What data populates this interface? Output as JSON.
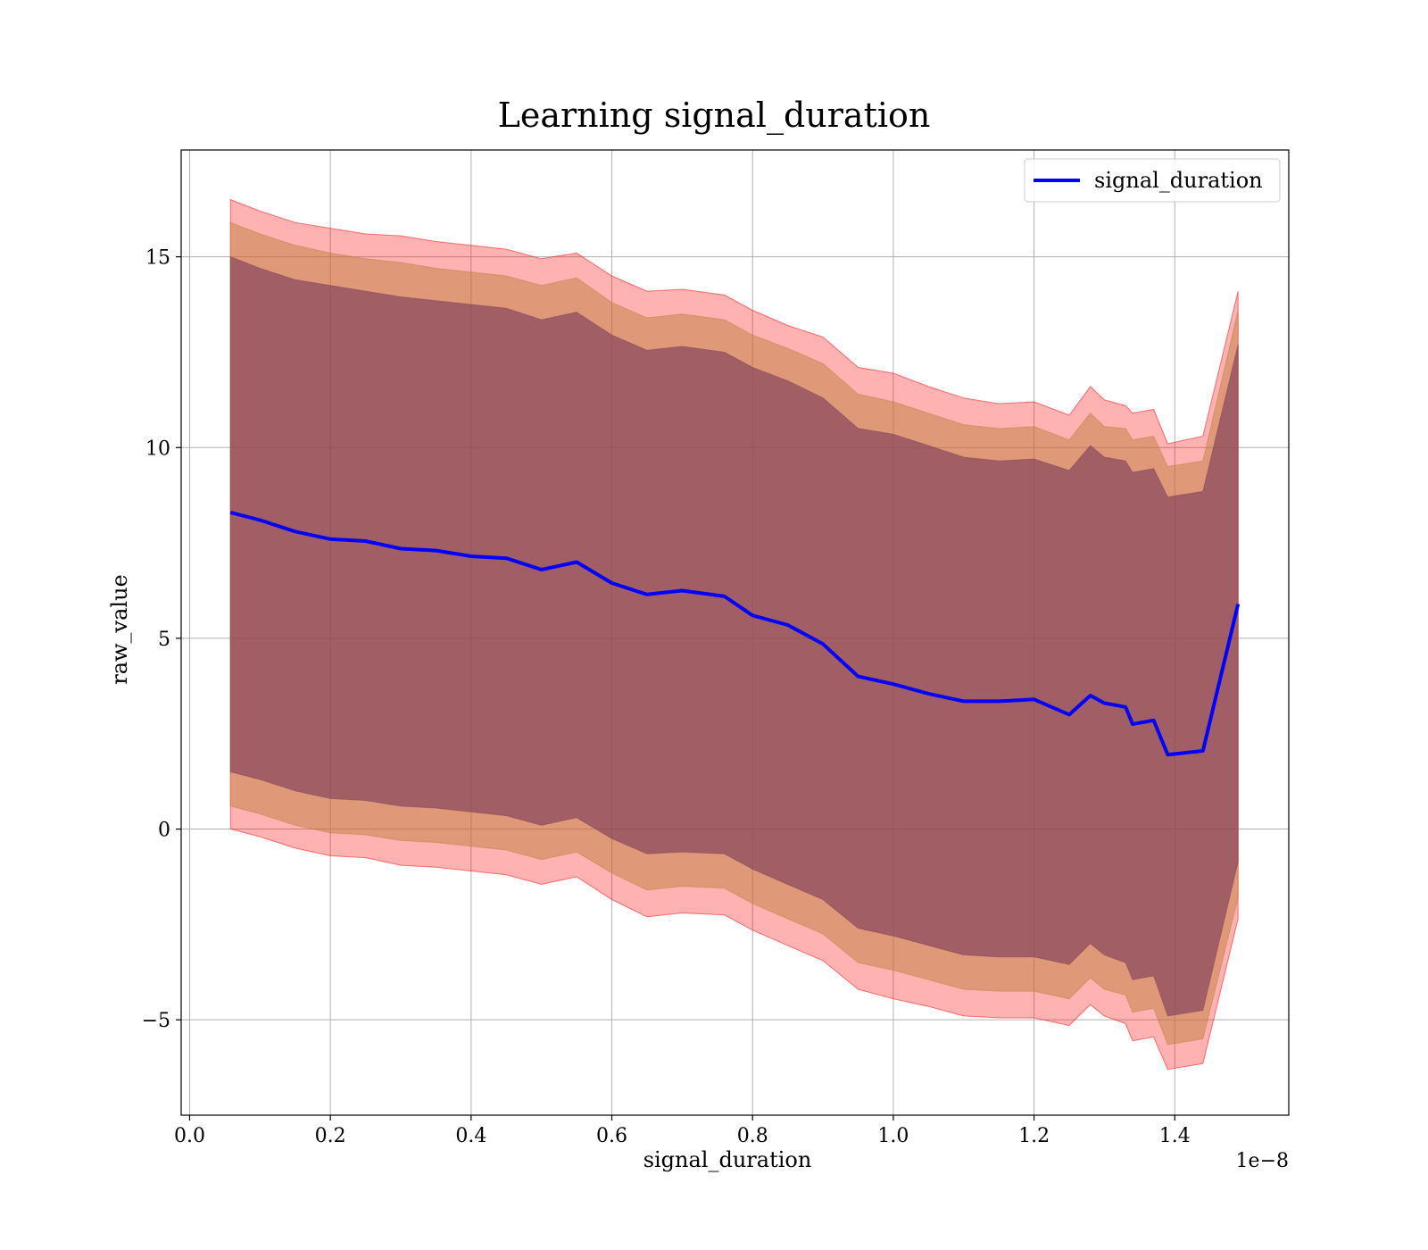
{
  "chart_data": {
    "type": "line",
    "title": "Learning signal_duration",
    "xlabel": "signal_duration",
    "ylabel": "raw_value",
    "x_offset_label": "1e−8",
    "xlim": [
      -0.012,
      1.562
    ],
    "ylim": [
      -7.5,
      17.8
    ],
    "x_ticks": [
      0.0,
      0.2,
      0.4,
      0.6,
      0.8,
      1.0,
      1.2,
      1.4
    ],
    "x_tick_labels": [
      "0.0",
      "0.2",
      "0.4",
      "0.6",
      "0.8",
      "1.0",
      "1.2",
      "1.4"
    ],
    "y_ticks": [
      -5,
      0,
      5,
      10,
      15
    ],
    "y_tick_labels": [
      "−5",
      "0",
      "5",
      "10",
      "15"
    ],
    "grid": true,
    "legend": {
      "position": "upper-right",
      "entries": [
        "signal_duration"
      ]
    },
    "colors": {
      "line": "#0000ff",
      "band_outer": "#ff0000",
      "band_middle": "#bf8040",
      "band_inner": "#80405a",
      "grid": "#b0b0b0"
    },
    "series": [
      {
        "name": "signal_duration",
        "x": [
          0.058,
          0.1,
          0.15,
          0.2,
          0.25,
          0.3,
          0.35,
          0.4,
          0.45,
          0.5,
          0.55,
          0.6,
          0.65,
          0.7,
          0.76,
          0.8,
          0.85,
          0.9,
          0.95,
          1.0,
          1.05,
          1.1,
          1.15,
          1.2,
          1.25,
          1.28,
          1.3,
          1.33,
          1.34,
          1.37,
          1.39,
          1.44,
          1.49
        ],
        "y": [
          8.3,
          8.1,
          7.8,
          7.6,
          7.55,
          7.35,
          7.3,
          7.15,
          7.1,
          6.8,
          7.0,
          6.45,
          6.15,
          6.25,
          6.1,
          5.6,
          5.35,
          4.85,
          4.0,
          3.8,
          3.55,
          3.35,
          3.35,
          3.4,
          3.0,
          3.5,
          3.3,
          3.2,
          2.75,
          2.85,
          1.95,
          2.05,
          5.9
        ]
      }
    ],
    "bands": [
      {
        "level": "outer",
        "upper": [
          16.5,
          16.2,
          15.9,
          15.75,
          15.6,
          15.55,
          15.4,
          15.3,
          15.2,
          14.95,
          15.1,
          14.5,
          14.1,
          14.15,
          14.0,
          13.6,
          13.2,
          12.9,
          12.1,
          11.95,
          11.6,
          11.3,
          11.15,
          11.2,
          10.85,
          11.6,
          11.25,
          11.1,
          10.9,
          11.0,
          10.1,
          10.3,
          14.1
        ],
        "lower": [
          0.0,
          -0.2,
          -0.5,
          -0.7,
          -0.75,
          -0.95,
          -1.0,
          -1.1,
          -1.2,
          -1.45,
          -1.25,
          -1.85,
          -2.3,
          -2.2,
          -2.25,
          -2.65,
          -3.05,
          -3.45,
          -4.2,
          -4.45,
          -4.65,
          -4.9,
          -4.95,
          -4.95,
          -5.15,
          -4.6,
          -4.9,
          -5.1,
          -5.55,
          -5.45,
          -6.3,
          -6.15,
          -2.35
        ]
      },
      {
        "level": "middle",
        "upper": [
          15.9,
          15.6,
          15.3,
          15.1,
          14.95,
          14.85,
          14.7,
          14.6,
          14.5,
          14.25,
          14.45,
          13.8,
          13.4,
          13.5,
          13.35,
          12.95,
          12.6,
          12.2,
          11.4,
          11.2,
          10.9,
          10.6,
          10.5,
          10.55,
          10.2,
          10.9,
          10.55,
          10.5,
          10.2,
          10.3,
          9.5,
          9.65,
          13.6
        ],
        "lower": [
          0.6,
          0.4,
          0.1,
          -0.1,
          -0.15,
          -0.3,
          -0.35,
          -0.45,
          -0.55,
          -0.8,
          -0.6,
          -1.15,
          -1.6,
          -1.5,
          -1.55,
          -1.95,
          -2.35,
          -2.75,
          -3.5,
          -3.7,
          -3.95,
          -4.2,
          -4.25,
          -4.25,
          -4.45,
          -3.9,
          -4.2,
          -4.35,
          -4.8,
          -4.7,
          -5.65,
          -5.5,
          -1.8
        ]
      },
      {
        "level": "inner",
        "upper": [
          15.0,
          14.7,
          14.4,
          14.25,
          14.1,
          13.95,
          13.85,
          13.75,
          13.65,
          13.35,
          13.55,
          12.95,
          12.55,
          12.65,
          12.5,
          12.1,
          11.75,
          11.3,
          10.5,
          10.35,
          10.05,
          9.75,
          9.65,
          9.7,
          9.4,
          10.05,
          9.75,
          9.65,
          9.35,
          9.45,
          8.7,
          8.85,
          12.7
        ],
        "lower": [
          1.5,
          1.3,
          1.0,
          0.8,
          0.75,
          0.6,
          0.55,
          0.45,
          0.35,
          0.1,
          0.3,
          -0.25,
          -0.65,
          -0.6,
          -0.65,
          -1.05,
          -1.45,
          -1.85,
          -2.6,
          -2.8,
          -3.05,
          -3.3,
          -3.35,
          -3.35,
          -3.55,
          -3.0,
          -3.3,
          -3.5,
          -3.95,
          -3.85,
          -4.9,
          -4.75,
          -0.85
        ]
      }
    ]
  }
}
